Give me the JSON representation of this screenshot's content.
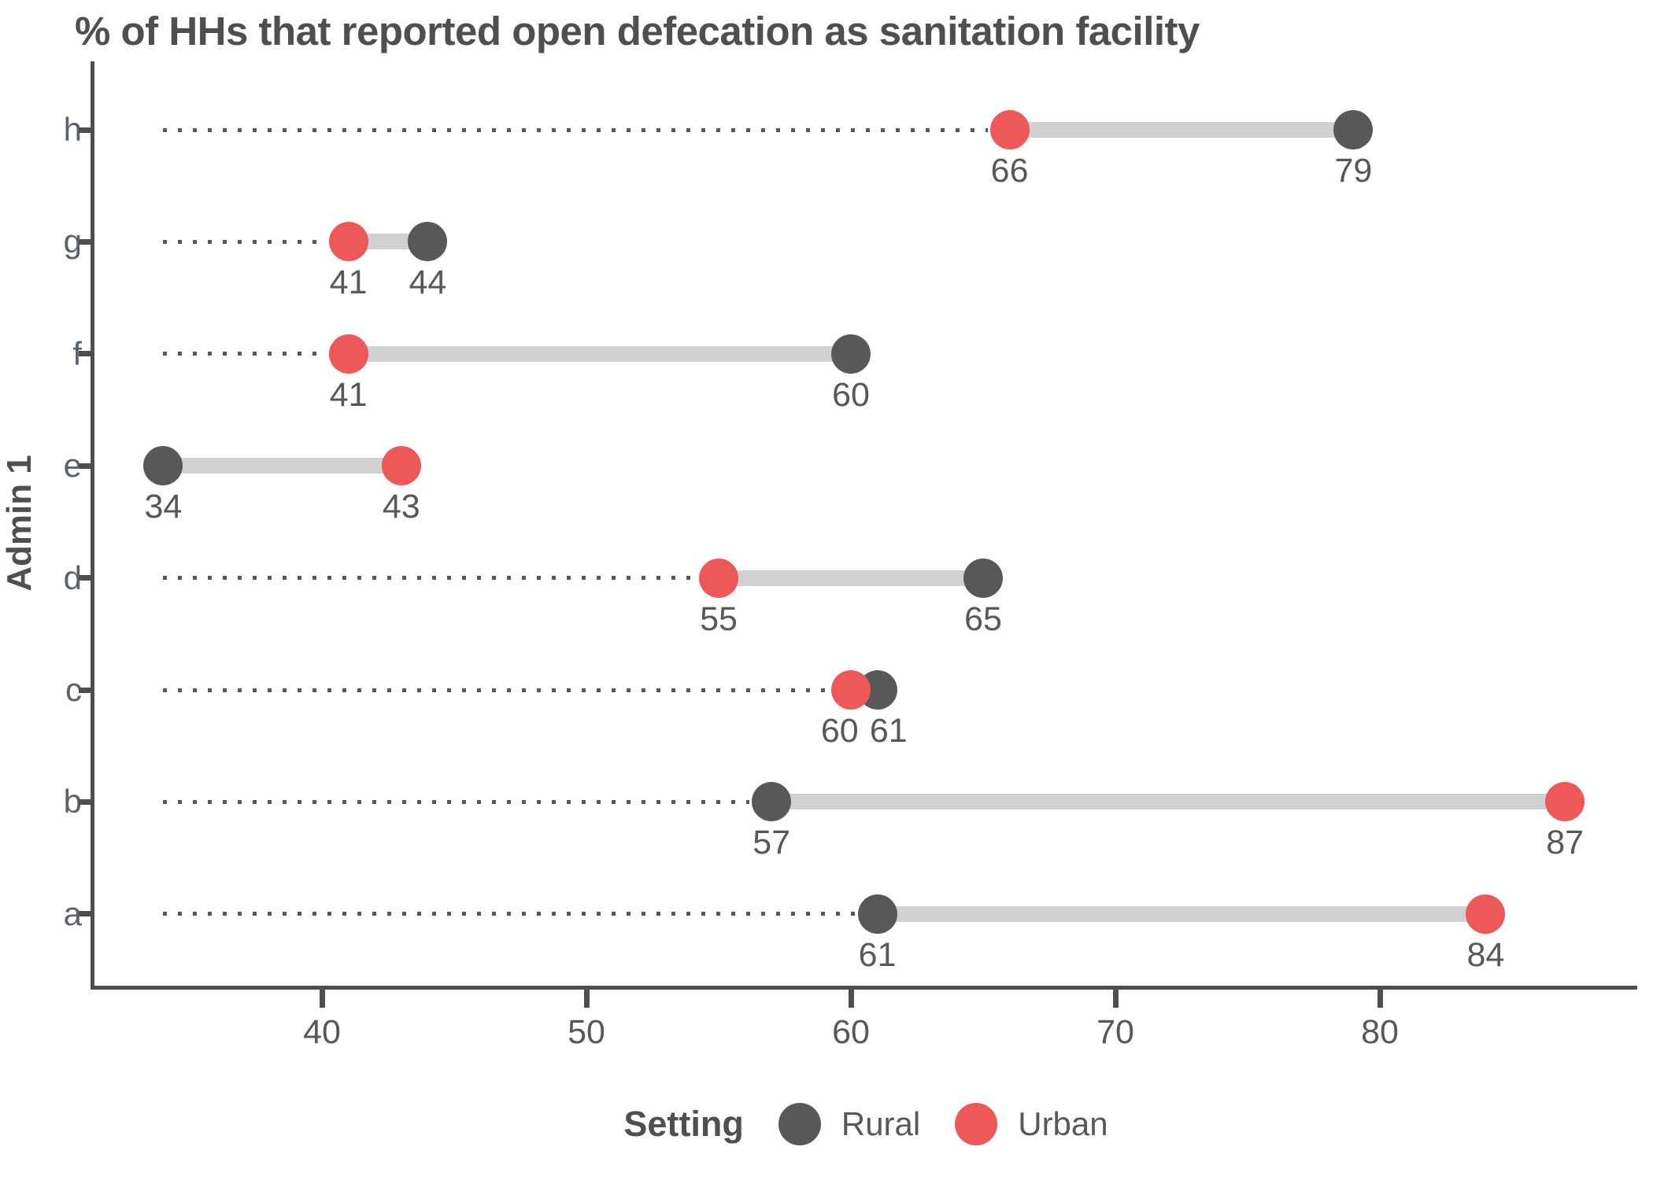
{
  "title": "% of HHs that reported open defecation as sanitation facility",
  "legend": {
    "title": "Setting",
    "items": [
      {
        "label": "Rural"
      },
      {
        "label": "Urban"
      }
    ]
  },
  "colors": {
    "rural": "#58585A",
    "urban": "#EE5859",
    "connector": "#D1D1D1",
    "axis": "#4E4E50",
    "text": "#58585A"
  },
  "chart_data": {
    "type": "dumbbell",
    "title": "% of HHs that reported open defecation as sanitation facility",
    "xlabel": "",
    "ylabel": "Admin 1",
    "categories": [
      "h",
      "g",
      "f",
      "e",
      "d",
      "c",
      "b",
      "a"
    ],
    "series": [
      {
        "name": "Rural",
        "color": "#58585A",
        "values": [
          79,
          44,
          60,
          34,
          65,
          61,
          57,
          61
        ]
      },
      {
        "name": "Urban",
        "color": "#EE5859",
        "values": [
          66,
          41,
          41,
          43,
          55,
          60,
          87,
          84
        ]
      }
    ],
    "x_ticks": [
      40,
      50,
      60,
      70,
      80
    ],
    "xlim": [
      31.5,
      89.5
    ],
    "leader_start_value": 34,
    "grid": false,
    "legend_position": "bottom",
    "legend_title": "Setting",
    "value_labels_shown": true
  }
}
